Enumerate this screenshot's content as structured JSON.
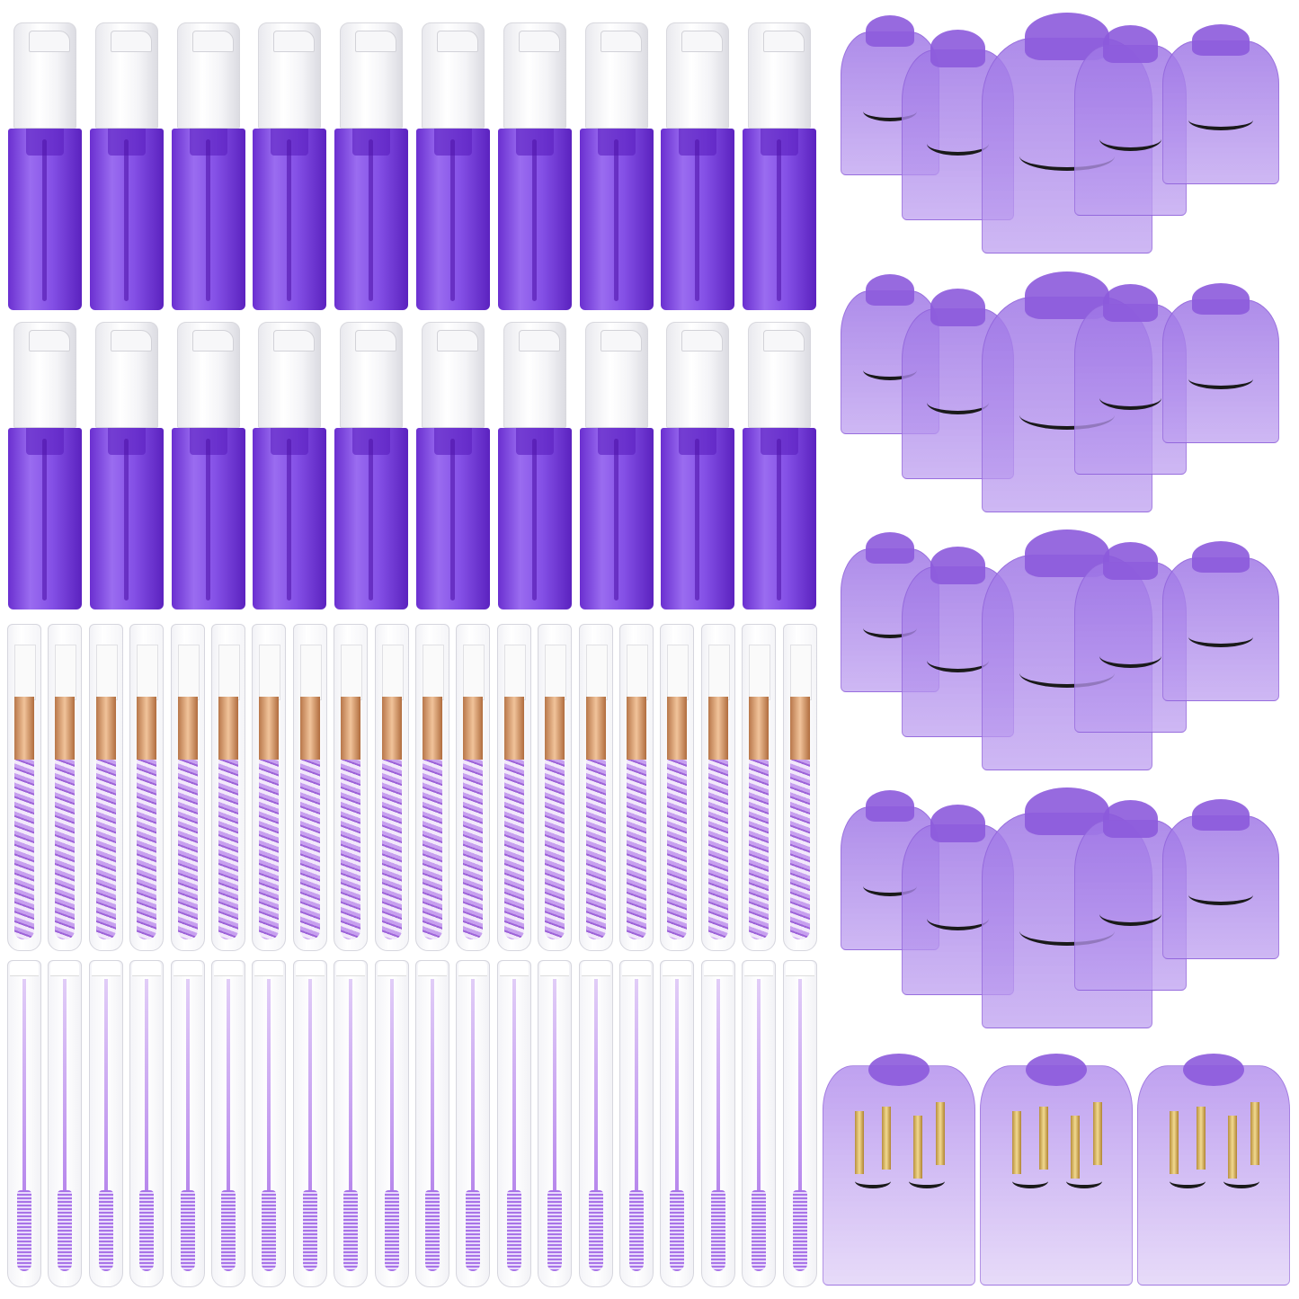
{
  "image": {
    "kind": "product photo",
    "background_color": "#ffffff",
    "products": [
      {
        "name": "foam-pump-bottle",
        "icon": "bottle-icon",
        "colors": {
          "body": "#7a44e0",
          "cap": "#f4f4f7"
        }
      },
      {
        "name": "crystal-lash-brush-tube",
        "icon": "brush-icon",
        "colors": {
          "ferrule": "#d9a070",
          "handle": "#b98ae8"
        }
      },
      {
        "name": "mascara-spoolie-tube",
        "icon": "spoolie-icon",
        "colors": {
          "spoolie": "#a873e8",
          "cap": "#ffffff"
        }
      },
      {
        "name": "organza-lash-bag",
        "icon": "bag-icon",
        "colors": {
          "bag": "#a98ae8",
          "lash": "#1a1a1a"
        }
      },
      {
        "name": "lash-kit-bag",
        "icon": "bag-icon",
        "colors": {
          "bag": "#b89eea",
          "brush": "#e3c474"
        }
      }
    ]
  }
}
